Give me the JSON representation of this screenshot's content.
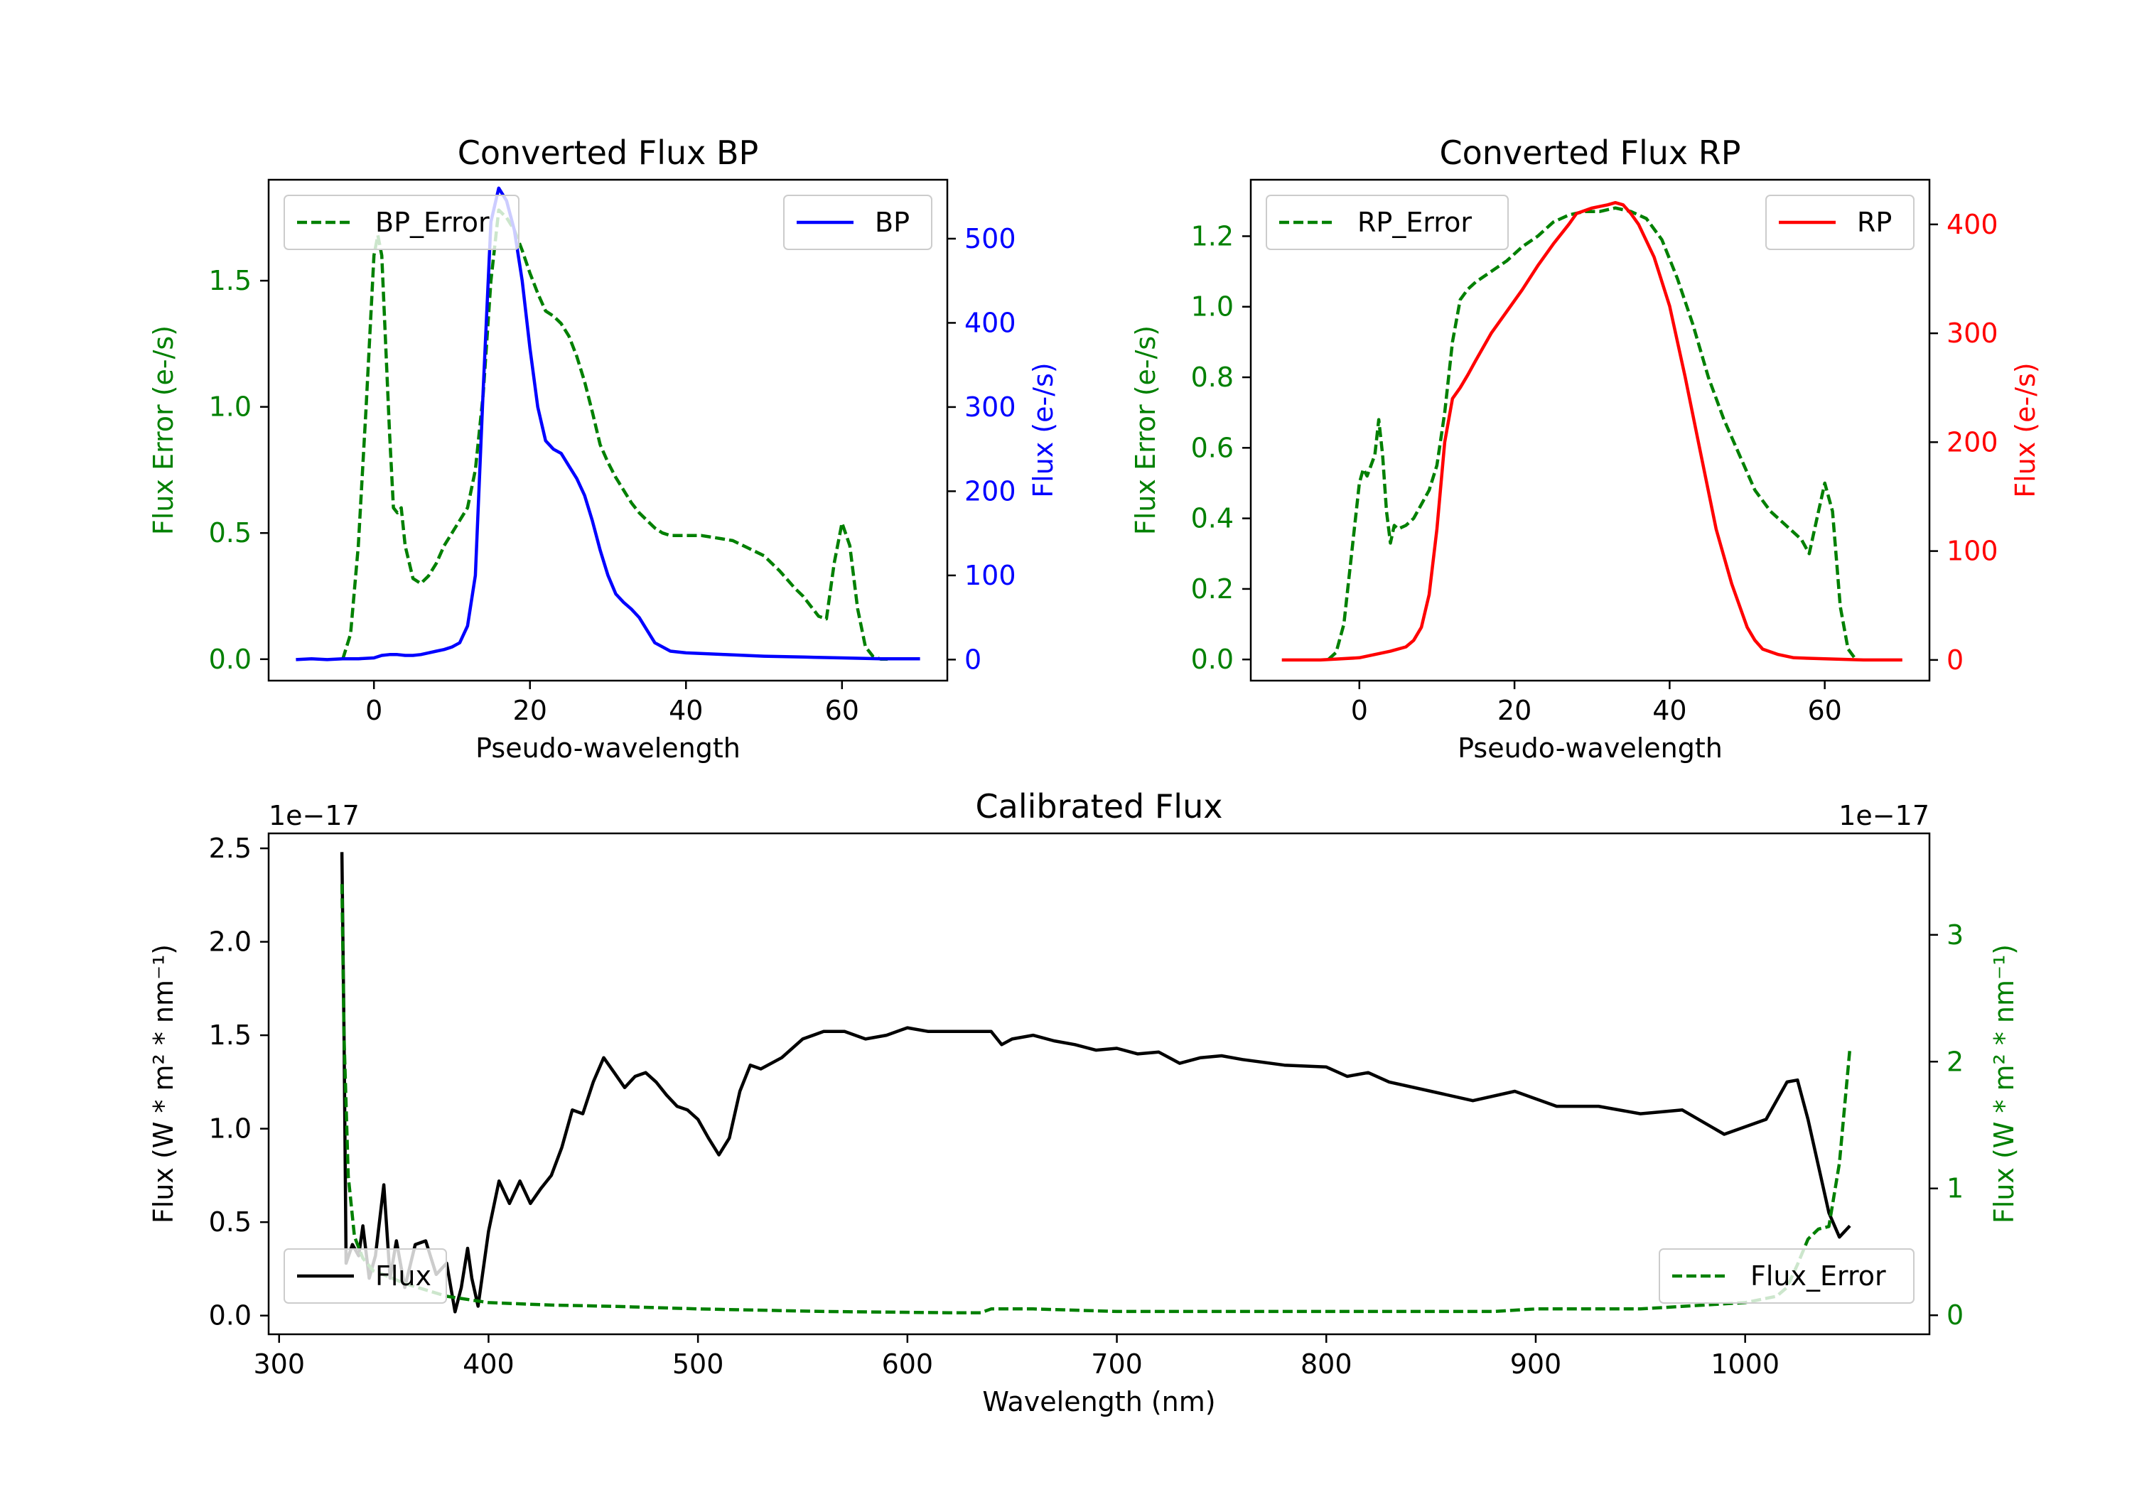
{
  "colors": {
    "bp_error": "#008000",
    "bp": "#0000ff",
    "rp_error": "#008000",
    "rp": "#ff0000",
    "flux": "#000000",
    "flux_error": "#008000",
    "axis": "#000000"
  },
  "chart_data": [
    {
      "id": "bp",
      "type": "line",
      "title": "Converted Flux BP",
      "xlabel": "Pseudo-wavelength",
      "ylabel_left": "Flux Error (e-/s)",
      "ylabel_right": "Flux (e-/s)",
      "xlim": [
        -13.5,
        73.5
      ],
      "ylim_left": [
        -0.085,
        1.9
      ],
      "ylim_right": [
        -25,
        570
      ],
      "xticks": [
        0,
        20,
        40,
        60
      ],
      "yticks_left": [
        0.0,
        0.5,
        1.0,
        1.5
      ],
      "yticks_right": [
        0,
        100,
        200,
        300,
        400,
        500
      ],
      "legend_left": "BP_Error",
      "legend_right": "BP",
      "series": [
        {
          "name": "BP_Error",
          "axis": "left",
          "style": "dashed",
          "color": "#008000",
          "x": [
            -4,
            -3,
            -2,
            -1,
            0,
            0.5,
            1,
            2,
            2.5,
            3,
            3.5,
            4,
            5,
            6,
            7,
            8,
            9,
            10,
            11,
            12,
            13,
            14,
            15,
            16,
            17,
            18,
            19,
            20,
            21,
            22,
            23,
            24,
            25,
            26,
            27,
            28,
            29,
            30,
            31,
            32,
            33,
            34,
            35,
            36,
            37,
            38,
            39,
            40,
            42,
            44,
            46,
            48,
            50,
            52,
            54,
            55,
            56,
            57,
            58,
            59,
            60,
            61,
            62,
            63,
            64,
            65,
            66
          ],
          "y": [
            0.0,
            0.1,
            0.45,
            1.0,
            1.6,
            1.68,
            1.6,
            0.9,
            0.6,
            0.58,
            0.6,
            0.45,
            0.32,
            0.3,
            0.33,
            0.38,
            0.45,
            0.5,
            0.55,
            0.6,
            0.75,
            1.05,
            1.5,
            1.78,
            1.75,
            1.7,
            1.62,
            1.53,
            1.45,
            1.38,
            1.36,
            1.33,
            1.28,
            1.2,
            1.1,
            0.98,
            0.85,
            0.78,
            0.72,
            0.67,
            0.62,
            0.58,
            0.55,
            0.52,
            0.5,
            0.49,
            0.49,
            0.49,
            0.49,
            0.48,
            0.47,
            0.44,
            0.41,
            0.35,
            0.28,
            0.25,
            0.21,
            0.17,
            0.16,
            0.38,
            0.54,
            0.45,
            0.2,
            0.05,
            0.01,
            0.0,
            0.0
          ]
        },
        {
          "name": "BP",
          "axis": "right",
          "style": "solid",
          "color": "#0000ff",
          "x": [
            -10,
            -8,
            -6,
            -4,
            -2,
            0,
            1,
            2,
            3,
            4,
            5,
            6,
            7,
            8,
            9,
            10,
            11,
            12,
            13,
            14,
            15,
            16,
            17,
            18,
            19,
            20,
            21,
            22,
            23,
            24,
            25,
            26,
            27,
            28,
            29,
            30,
            31,
            32,
            33,
            34,
            35,
            36,
            38,
            40,
            45,
            50,
            55,
            60,
            65,
            70
          ],
          "y": [
            0,
            1,
            0,
            1,
            1,
            2,
            5,
            6,
            6,
            5,
            5,
            6,
            8,
            10,
            12,
            15,
            20,
            40,
            100,
            320,
            520,
            560,
            545,
            510,
            450,
            370,
            300,
            260,
            250,
            245,
            230,
            215,
            195,
            165,
            130,
            100,
            78,
            68,
            60,
            50,
            35,
            20,
            10,
            8,
            6,
            4,
            3,
            2,
            1,
            1
          ]
        }
      ]
    },
    {
      "id": "rp",
      "type": "line",
      "title": "Converted Flux RP",
      "xlabel": "Pseudo-wavelength",
      "ylabel_left": "Flux Error (e-/s)",
      "ylabel_right": "Flux (e-/s)",
      "xlim": [
        -14,
        73.5
      ],
      "ylim_left": [
        -0.06,
        1.36
      ],
      "ylim_right": [
        -19,
        441
      ],
      "xticks": [
        0,
        20,
        40,
        60
      ],
      "yticks_left": [
        0.0,
        0.2,
        0.4,
        0.6,
        0.8,
        1.0,
        1.2
      ],
      "yticks_right": [
        0,
        100,
        200,
        300,
        400
      ],
      "legend_left": "RP_Error",
      "legend_right": "RP",
      "series": [
        {
          "name": "RP_Error",
          "axis": "left",
          "style": "dashed",
          "color": "#008000",
          "x": [
            -4,
            -3,
            -2,
            -1,
            0,
            0.5,
            1,
            2,
            2.5,
            3,
            3.5,
            4,
            4.5,
            5,
            6,
            7,
            8,
            9,
            10,
            11,
            12,
            13,
            14,
            15,
            17,
            19,
            21,
            23,
            25,
            27,
            29,
            31,
            33,
            35,
            37,
            39,
            41,
            43,
            45,
            47,
            49,
            51,
            53,
            55,
            57,
            58,
            59,
            60,
            61,
            62,
            63,
            64
          ],
          "y": [
            0.0,
            0.02,
            0.1,
            0.3,
            0.5,
            0.54,
            0.52,
            0.58,
            0.68,
            0.58,
            0.42,
            0.33,
            0.38,
            0.37,
            0.38,
            0.4,
            0.44,
            0.48,
            0.55,
            0.7,
            0.9,
            1.02,
            1.05,
            1.07,
            1.1,
            1.13,
            1.17,
            1.2,
            1.24,
            1.26,
            1.27,
            1.27,
            1.28,
            1.27,
            1.25,
            1.19,
            1.08,
            0.95,
            0.8,
            0.68,
            0.58,
            0.48,
            0.42,
            0.38,
            0.34,
            0.3,
            0.4,
            0.5,
            0.42,
            0.15,
            0.03,
            0.0
          ]
        },
        {
          "name": "RP",
          "axis": "right",
          "style": "solid",
          "color": "#ff0000",
          "x": [
            -10,
            -5,
            0,
            2,
            4,
            6,
            7,
            8,
            9,
            10,
            11,
            12,
            13,
            14,
            15,
            17,
            19,
            21,
            23,
            25,
            27,
            28,
            30,
            32,
            33,
            34,
            35,
            36,
            37,
            38,
            40,
            42,
            44,
            46,
            48,
            50,
            51,
            52,
            54,
            56,
            60,
            65,
            70
          ],
          "y": [
            0,
            0,
            2,
            5,
            8,
            12,
            18,
            30,
            60,
            120,
            200,
            240,
            250,
            262,
            275,
            300,
            320,
            340,
            362,
            382,
            400,
            410,
            415,
            418,
            420,
            418,
            410,
            400,
            385,
            370,
            325,
            260,
            190,
            120,
            70,
            30,
            18,
            10,
            5,
            2,
            1,
            0,
            0
          ]
        }
      ]
    },
    {
      "id": "calibrated",
      "type": "line",
      "title": "Calibrated Flux",
      "xlabel": "Wavelength (nm)",
      "ylabel_left": "Flux (W * m² * nm⁻¹)",
      "ylabel_right": "Flux (W * m² * nm⁻¹)",
      "offset_left": "1e−17",
      "offset_right": "1e−17",
      "xlim": [
        295,
        1088
      ],
      "ylim_left": [
        -0.1,
        2.58
      ],
      "ylim_right": [
        -0.15,
        3.8
      ],
      "xticks": [
        300,
        400,
        500,
        600,
        700,
        800,
        900,
        1000
      ],
      "yticks_left": [
        0.0,
        0.5,
        1.0,
        1.5,
        2.0,
        2.5
      ],
      "yticks_right": [
        0,
        1,
        2,
        3
      ],
      "legend_left": "Flux",
      "legend_right": "Flux_Error",
      "series": [
        {
          "name": "Flux",
          "axis": "left",
          "style": "solid",
          "color": "#000000",
          "x": [
            330,
            331,
            332,
            335,
            338,
            340,
            343,
            346,
            350,
            353,
            356,
            360,
            365,
            370,
            375,
            380,
            384,
            387,
            390,
            392,
            395,
            400,
            405,
            410,
            415,
            420,
            425,
            430,
            435,
            440,
            445,
            450,
            455,
            460,
            465,
            470,
            475,
            480,
            485,
            490,
            495,
            500,
            505,
            510,
            515,
            520,
            525,
            530,
            540,
            550,
            560,
            570,
            580,
            590,
            600,
            610,
            620,
            630,
            640,
            645,
            650,
            660,
            670,
            680,
            690,
            700,
            710,
            720,
            730,
            740,
            750,
            760,
            780,
            800,
            810,
            820,
            830,
            850,
            870,
            890,
            910,
            930,
            950,
            970,
            990,
            1010,
            1020,
            1025,
            1030,
            1035,
            1040,
            1045,
            1050
          ],
          "y": [
            2.48,
            1.5,
            0.28,
            0.38,
            0.32,
            0.48,
            0.2,
            0.32,
            0.7,
            0.2,
            0.4,
            0.15,
            0.38,
            0.4,
            0.22,
            0.28,
            0.02,
            0.15,
            0.36,
            0.2,
            0.05,
            0.45,
            0.72,
            0.6,
            0.72,
            0.6,
            0.68,
            0.75,
            0.9,
            1.1,
            1.08,
            1.25,
            1.38,
            1.3,
            1.22,
            1.28,
            1.3,
            1.25,
            1.18,
            1.12,
            1.1,
            1.05,
            0.95,
            0.86,
            0.95,
            1.2,
            1.34,
            1.32,
            1.38,
            1.48,
            1.52,
            1.52,
            1.48,
            1.5,
            1.54,
            1.52,
            1.52,
            1.52,
            1.52,
            1.45,
            1.48,
            1.5,
            1.47,
            1.45,
            1.42,
            1.43,
            1.4,
            1.41,
            1.35,
            1.38,
            1.39,
            1.37,
            1.34,
            1.33,
            1.28,
            1.3,
            1.25,
            1.2,
            1.15,
            1.2,
            1.12,
            1.12,
            1.08,
            1.1,
            0.97,
            1.05,
            1.25,
            1.26,
            1.05,
            0.8,
            0.55,
            0.42,
            0.48
          ]
        },
        {
          "name": "Flux_Error",
          "axis": "right",
          "style": "dashed",
          "color": "#008000",
          "x": [
            330,
            331,
            333,
            336,
            340,
            345,
            350,
            360,
            380,
            400,
            430,
            460,
            500,
            560,
            620,
            635,
            640,
            660,
            700,
            800,
            880,
            900,
            950,
            1000,
            1015,
            1020,
            1025,
            1030,
            1035,
            1040,
            1045,
            1050
          ],
          "y": [
            3.4,
            2.2,
            1.1,
            0.62,
            0.45,
            0.35,
            0.32,
            0.25,
            0.15,
            0.1,
            0.08,
            0.07,
            0.05,
            0.03,
            0.02,
            0.02,
            0.05,
            0.05,
            0.03,
            0.03,
            0.03,
            0.05,
            0.05,
            0.1,
            0.15,
            0.22,
            0.4,
            0.6,
            0.68,
            0.7,
            1.2,
            2.1
          ]
        }
      ]
    }
  ]
}
